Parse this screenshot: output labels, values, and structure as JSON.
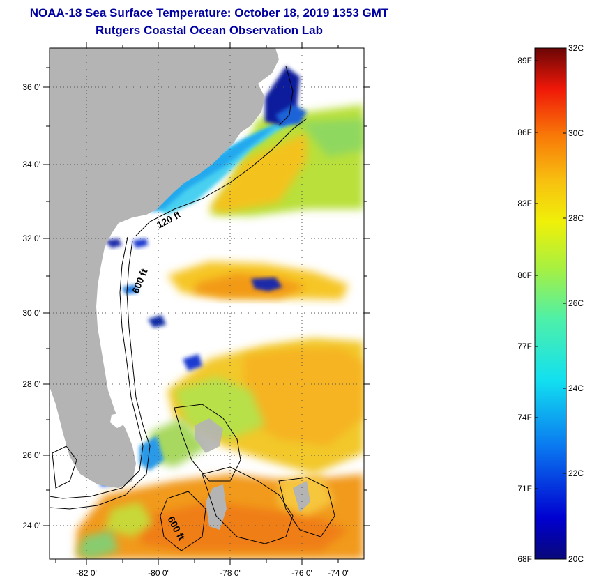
{
  "header": {
    "title": "NOAA-18 Sea Surface Temperature:  October 18, 2019 1353 GMT",
    "subtitle": "Rutgers Coastal Ocean Observation Lab"
  },
  "map": {
    "lat_labels": [
      "36 0'",
      "34 0'",
      "32 0'",
      "30 0'",
      "28 0'",
      "26 0'",
      "24 0'"
    ],
    "lon_labels": [
      "-82 0'",
      "-80 0'",
      "-78 0'",
      "-76 0'",
      "-74 0'"
    ],
    "contour_labels": [
      "120 ft",
      "600 ft",
      "600 ft"
    ],
    "colors": {
      "land": "#b4b4b4",
      "cloud": "#ffffff"
    }
  },
  "colorbar": {
    "f_labels": [
      "89F",
      "86F",
      "83F",
      "80F",
      "77F",
      "74F",
      "71F",
      "68F"
    ],
    "c_labels": [
      "32C",
      "30C",
      "28C",
      "26C",
      "24C",
      "22C",
      "20C"
    ],
    "range_c": [
      20,
      32
    ]
  }
}
